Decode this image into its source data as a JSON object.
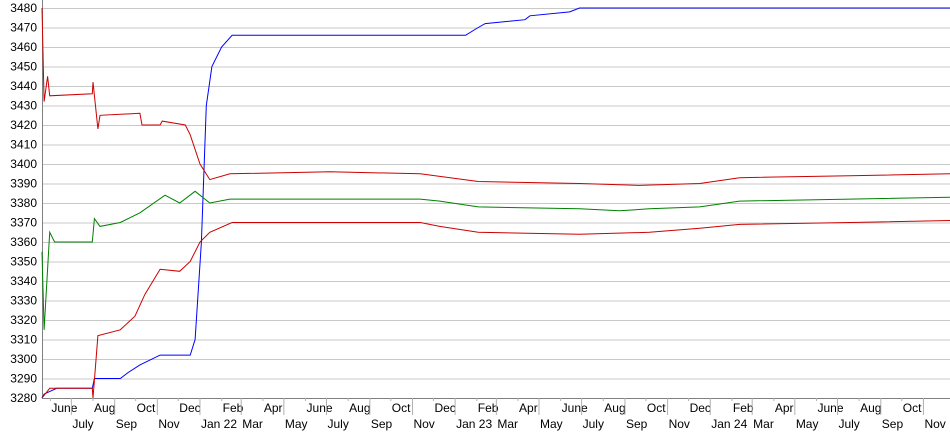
{
  "chart_data": {
    "type": "line",
    "title": "",
    "xlabel": "",
    "ylabel": "",
    "xlim": [
      "2021-05-20",
      "2024-12-09"
    ],
    "ylim": [
      3280,
      3480
    ],
    "yticks": [
      3280,
      3290,
      3300,
      3310,
      3320,
      3330,
      3340,
      3350,
      3360,
      3370,
      3380,
      3390,
      3400,
      3410,
      3420,
      3430,
      3440,
      3450,
      3460,
      3470,
      3480
    ],
    "grid": "horizontal",
    "xticks": [
      {
        "date": "2021-06-01",
        "label": "June"
      },
      {
        "date": "2021-07-01",
        "label": "July"
      },
      {
        "date": "2021-08-01",
        "label": "Aug"
      },
      {
        "date": "2021-09-01",
        "label": "Sep"
      },
      {
        "date": "2021-10-01",
        "label": "Oct"
      },
      {
        "date": "2021-11-01",
        "label": "Nov"
      },
      {
        "date": "2021-12-01",
        "label": "Dec"
      },
      {
        "date": "2022-01-01",
        "label": "Jan 22"
      },
      {
        "date": "2022-02-01",
        "label": "Feb"
      },
      {
        "date": "2022-03-01",
        "label": "Mar"
      },
      {
        "date": "2022-04-01",
        "label": "Apr"
      },
      {
        "date": "2022-05-01",
        "label": "May"
      },
      {
        "date": "2022-06-01",
        "label": "June"
      },
      {
        "date": "2022-07-01",
        "label": "July"
      },
      {
        "date": "2022-08-01",
        "label": "Aug"
      },
      {
        "date": "2022-09-01",
        "label": "Sep"
      },
      {
        "date": "2022-10-01",
        "label": "Oct"
      },
      {
        "date": "2022-11-01",
        "label": "Nov"
      },
      {
        "date": "2022-12-01",
        "label": "Dec"
      },
      {
        "date": "2023-01-01",
        "label": "Jan 23"
      },
      {
        "date": "2023-02-01",
        "label": "Feb"
      },
      {
        "date": "2023-03-01",
        "label": "Mar"
      },
      {
        "date": "2023-04-01",
        "label": "Apr"
      },
      {
        "date": "2023-05-01",
        "label": "May"
      },
      {
        "date": "2023-06-01",
        "label": "June"
      },
      {
        "date": "2023-07-01",
        "label": "July"
      },
      {
        "date": "2023-08-01",
        "label": "Aug"
      },
      {
        "date": "2023-09-01",
        "label": "Sep"
      },
      {
        "date": "2023-10-01",
        "label": "Oct"
      },
      {
        "date": "2023-11-01",
        "label": "Nov"
      },
      {
        "date": "2023-12-01",
        "label": "Dec"
      },
      {
        "date": "2024-01-01",
        "label": "Jan 24"
      },
      {
        "date": "2024-02-01",
        "label": "Feb"
      },
      {
        "date": "2024-03-01",
        "label": "Mar"
      },
      {
        "date": "2024-04-01",
        "label": "Apr"
      },
      {
        "date": "2024-05-01",
        "label": "May"
      },
      {
        "date": "2024-06-01",
        "label": "June"
      },
      {
        "date": "2024-07-01",
        "label": "July"
      },
      {
        "date": "2024-08-01",
        "label": "Aug"
      },
      {
        "date": "2024-09-01",
        "label": "Sep"
      },
      {
        "date": "2024-10-01",
        "label": "Oct"
      },
      {
        "date": "2024-11-01",
        "label": "Nov"
      }
    ],
    "series": [
      {
        "color": "#0000ff",
        "points": [
          [
            "2021-05-20",
            3280
          ],
          [
            "2021-05-23",
            3282
          ],
          [
            "2021-06-10",
            3285
          ],
          [
            "2021-07-31",
            3285
          ],
          [
            "2021-08-03",
            3290
          ],
          [
            "2021-09-09",
            3290
          ],
          [
            "2021-09-20",
            3293
          ],
          [
            "2021-10-07",
            3297
          ],
          [
            "2021-11-05",
            3302
          ],
          [
            "2021-12-18",
            3302
          ],
          [
            "2021-12-25",
            3310
          ],
          [
            "2022-01-03",
            3360
          ],
          [
            "2022-01-10",
            3430
          ],
          [
            "2022-01-18",
            3450
          ],
          [
            "2022-02-01",
            3460
          ],
          [
            "2022-02-16",
            3466
          ],
          [
            "2023-01-16",
            3466
          ],
          [
            "2023-02-03",
            3470
          ],
          [
            "2023-02-13",
            3472
          ],
          [
            "2023-04-11",
            3474
          ],
          [
            "2023-04-18",
            3476
          ],
          [
            "2023-06-14",
            3478
          ],
          [
            "2023-06-28",
            3480
          ],
          [
            "2024-12-09",
            3480
          ]
        ]
      },
      {
        "color": "#cc0000",
        "points": [
          [
            "2021-05-20",
            3480
          ],
          [
            "2021-05-23",
            3432
          ],
          [
            "2021-05-28",
            3445
          ],
          [
            "2021-05-31",
            3435
          ],
          [
            "2021-07-31",
            3436
          ],
          [
            "2021-08-01",
            3442
          ],
          [
            "2021-08-08",
            3418
          ],
          [
            "2021-08-11",
            3425
          ],
          [
            "2021-10-07",
            3426
          ],
          [
            "2021-10-10",
            3420
          ],
          [
            "2021-11-05",
            3420
          ],
          [
            "2021-11-08",
            3422
          ],
          [
            "2021-12-11",
            3420
          ],
          [
            "2021-12-18",
            3415
          ],
          [
            "2022-01-01",
            3400
          ],
          [
            "2022-01-15",
            3392
          ],
          [
            "2022-02-13",
            3395
          ],
          [
            "2022-07-06",
            3396
          ],
          [
            "2022-11-12",
            3395
          ],
          [
            "2023-02-03",
            3391
          ],
          [
            "2023-06-28",
            3390
          ],
          [
            "2023-09-21",
            3389
          ],
          [
            "2023-12-17",
            3390
          ],
          [
            "2024-02-12",
            3393
          ],
          [
            "2024-07-19",
            3394
          ],
          [
            "2024-12-09",
            3395
          ]
        ]
      },
      {
        "color": "#008000",
        "points": [
          [
            "2021-05-20",
            3355
          ],
          [
            "2021-05-23",
            3315
          ],
          [
            "2021-05-31",
            3365
          ],
          [
            "2021-06-07",
            3360
          ],
          [
            "2021-07-31",
            3360
          ],
          [
            "2021-08-03",
            3372
          ],
          [
            "2021-08-11",
            3368
          ],
          [
            "2021-09-09",
            3370
          ],
          [
            "2021-10-07",
            3375
          ],
          [
            "2021-11-12",
            3384
          ],
          [
            "2021-12-03",
            3380
          ],
          [
            "2021-12-25",
            3386
          ],
          [
            "2022-01-15",
            3380
          ],
          [
            "2022-02-13",
            3382
          ],
          [
            "2022-11-12",
            3382
          ],
          [
            "2022-12-10",
            3381
          ],
          [
            "2023-02-03",
            3378
          ],
          [
            "2023-06-28",
            3377
          ],
          [
            "2023-08-24",
            3376
          ],
          [
            "2023-10-06",
            3377
          ],
          [
            "2023-12-17",
            3378
          ],
          [
            "2024-02-12",
            3381
          ],
          [
            "2024-07-19",
            3382
          ],
          [
            "2024-12-09",
            3383
          ]
        ]
      },
      {
        "color": "#cc0000",
        "points": [
          [
            "2021-05-20",
            3280
          ],
          [
            "2021-05-31",
            3285
          ],
          [
            "2021-07-31",
            3285
          ],
          [
            "2021-08-01",
            3280
          ],
          [
            "2021-08-08",
            3312
          ],
          [
            "2021-09-09",
            3315
          ],
          [
            "2021-09-30",
            3322
          ],
          [
            "2021-10-14",
            3333
          ],
          [
            "2021-11-05",
            3346
          ],
          [
            "2021-12-03",
            3345
          ],
          [
            "2021-12-18",
            3350
          ],
          [
            "2022-01-01",
            3360
          ],
          [
            "2022-01-15",
            3365
          ],
          [
            "2022-02-16",
            3370
          ],
          [
            "2022-11-12",
            3370
          ],
          [
            "2022-12-10",
            3368
          ],
          [
            "2023-02-03",
            3365
          ],
          [
            "2023-06-28",
            3364
          ],
          [
            "2023-10-06",
            3365
          ],
          [
            "2023-12-17",
            3367
          ],
          [
            "2024-02-12",
            3369
          ],
          [
            "2024-07-19",
            3370
          ],
          [
            "2024-12-09",
            3371
          ]
        ]
      }
    ]
  }
}
